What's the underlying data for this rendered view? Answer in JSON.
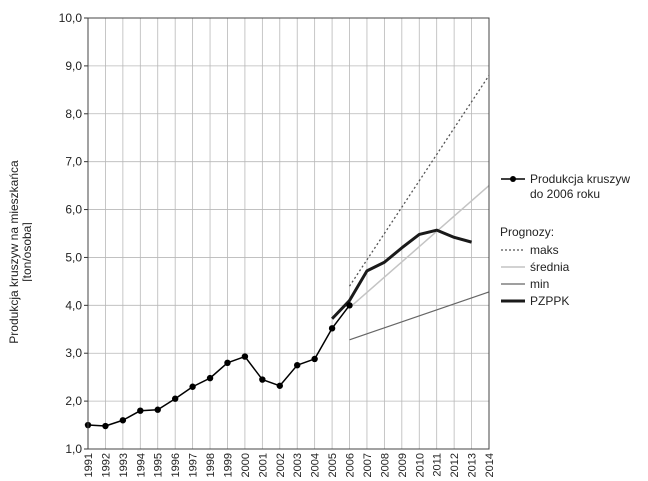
{
  "chart_data": {
    "type": "line",
    "ylabel_lines": [
      "Produkcja kruszyw na mieszkańca",
      "[ton/osoba]"
    ],
    "ylim": [
      1.0,
      10.0
    ],
    "yticks": [
      "1,0",
      "2,0",
      "3,0",
      "4,0",
      "5,0",
      "6,0",
      "7,0",
      "8,0",
      "9,0",
      "10,0"
    ],
    "x_categories": [
      "1991",
      "1992",
      "1993",
      "1994",
      "1995",
      "1996",
      "1997",
      "1998",
      "1999",
      "2000",
      "2001",
      "2002",
      "2003",
      "2004",
      "2005",
      "2006",
      "2007",
      "2008",
      "2009",
      "2010",
      "2011",
      "2012",
      "2013",
      "2014"
    ],
    "grid": true,
    "legend_position": "right",
    "series": [
      {
        "name_lines": [
          "Produkcja kruszyw",
          "do 2006 roku"
        ],
        "style": "line-markers",
        "color": "#000000",
        "points": [
          {
            "x": "1991",
            "y": 1.5
          },
          {
            "x": "1992",
            "y": 1.48
          },
          {
            "x": "1993",
            "y": 1.6
          },
          {
            "x": "1994",
            "y": 1.8
          },
          {
            "x": "1995",
            "y": 1.82
          },
          {
            "x": "1996",
            "y": 2.05
          },
          {
            "x": "1997",
            "y": 2.3
          },
          {
            "x": "1998",
            "y": 2.48
          },
          {
            "x": "1999",
            "y": 2.8
          },
          {
            "x": "2000",
            "y": 2.93
          },
          {
            "x": "2001",
            "y": 2.45
          },
          {
            "x": "2002",
            "y": 2.32
          },
          {
            "x": "2003",
            "y": 2.75
          },
          {
            "x": "2004",
            "y": 2.88
          },
          {
            "x": "2005",
            "y": 3.52
          },
          {
            "x": "2006",
            "y": 4.0
          }
        ]
      },
      {
        "name": "maks",
        "style": "dotted",
        "color": "#555555",
        "points": [
          {
            "x": "2006",
            "y": 4.4
          },
          {
            "x": "2014",
            "y": 8.8
          }
        ]
      },
      {
        "name": "średnia",
        "style": "solid-light",
        "color": "#c4c4c4",
        "points": [
          {
            "x": "2006",
            "y": 3.95
          },
          {
            "x": "2014",
            "y": 6.5
          }
        ]
      },
      {
        "name": "min",
        "style": "solid-thin",
        "color": "#666666",
        "points": [
          {
            "x": "2006",
            "y": 3.28
          },
          {
            "x": "2014",
            "y": 4.28
          }
        ]
      },
      {
        "name": "PZPPK",
        "style": "solid-thick",
        "color": "#1a1a1a",
        "points": [
          {
            "x": "2005",
            "y": 3.72
          },
          {
            "x": "2006",
            "y": 4.1
          },
          {
            "x": "2007",
            "y": 4.72
          },
          {
            "x": "2008",
            "y": 4.9
          },
          {
            "x": "2009",
            "y": 5.2
          },
          {
            "x": "2010",
            "y": 5.48
          },
          {
            "x": "2011",
            "y": 5.57
          },
          {
            "x": "2012",
            "y": 5.42
          },
          {
            "x": "2013",
            "y": 5.32
          }
        ]
      }
    ],
    "legend": {
      "main_lines": [
        "Produkcja kruszyw",
        "do 2006 roku"
      ],
      "prognoses_title": "Prognozy:",
      "items": [
        {
          "label": "maks",
          "style": "dotted",
          "color": "#555555"
        },
        {
          "label": "średnia",
          "style": "solid-light",
          "color": "#c4c4c4"
        },
        {
          "label": "min",
          "style": "solid-thin",
          "color": "#666666"
        },
        {
          "label": "PZPPK",
          "style": "solid-thick",
          "color": "#1a1a1a"
        }
      ]
    }
  }
}
